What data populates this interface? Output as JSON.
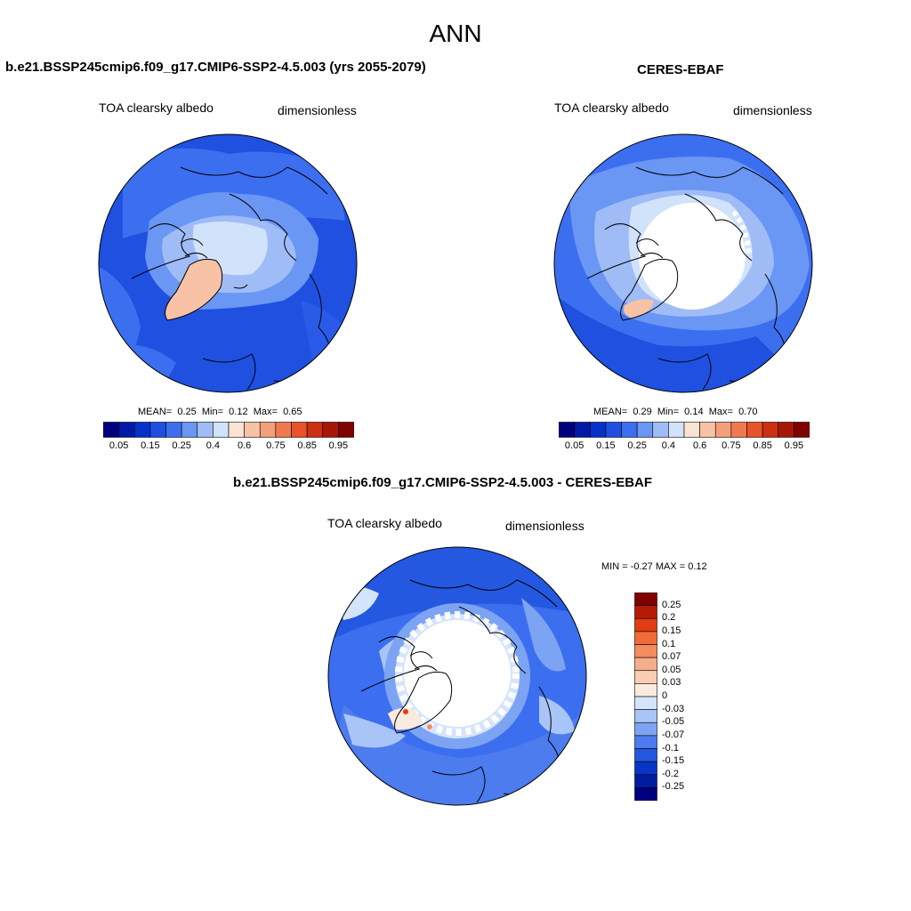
{
  "suptitle": "ANN",
  "panels": [
    {
      "title": "b.e21.BSSP245cmip6.f09_g17.CMIP6-SSP2-4.5.003 (yrs 2055-2079)",
      "left_label": "TOA clearsky albedo",
      "right_label": "dimensionless",
      "stats": {
        "mean_label": "MEAN=",
        "mean": "0.25",
        "min_label": "Min=",
        "min": "0.12",
        "max_label": "Max=",
        "max": "0.65"
      }
    },
    {
      "title": "CERES-EBAF",
      "left_label": "TOA clearsky albedo",
      "right_label": "dimensionless",
      "stats": {
        "mean_label": "MEAN=",
        "mean": "0.29",
        "min_label": "Min=",
        "min": "0.14",
        "max_label": "Max=",
        "max": "0.70"
      }
    },
    {
      "title": "b.e21.BSSP245cmip6.f09_g17.CMIP6-SSP2-4.5.003 - CERES-EBAF",
      "left_label": "TOA clearsky albedo",
      "right_label": "dimensionless",
      "minmax": "MIN =  -0.27 MAX =   0.12"
    }
  ],
  "colorbar_h": {
    "colors": [
      "#00007f",
      "#0019a8",
      "#0532c8",
      "#1f4fe0",
      "#3c6ff0",
      "#6a96f4",
      "#9fbcf7",
      "#d1e2fb",
      "#fbe3d3",
      "#f7c2a5",
      "#f39f7b",
      "#ef7a4f",
      "#e8532a",
      "#cc3010",
      "#a81606",
      "#800000"
    ],
    "ticks": [
      "0.05",
      "0.15",
      "0.25",
      "0.4",
      "0.6",
      "0.75",
      "0.85",
      "0.95"
    ]
  },
  "colorbar_v": {
    "colors_top_to_bottom": [
      "#800000",
      "#b51b04",
      "#e23c12",
      "#f26a36",
      "#f58c5f",
      "#f6ad8a",
      "#f9cdb3",
      "#fbeade",
      "#d4e4fb",
      "#a9c4f7",
      "#7da4f3",
      "#4c7ced",
      "#2558e1",
      "#0935c6",
      "#001ca2",
      "#00007f"
    ],
    "ticks": [
      "0.25",
      "0.2",
      "0.15",
      "0.1",
      "0.07",
      "0.05",
      "0.03",
      "0",
      "-0.03",
      "-0.05",
      "-0.07",
      "-0.1",
      "-0.15",
      "-0.2",
      "-0.25"
    ]
  }
}
